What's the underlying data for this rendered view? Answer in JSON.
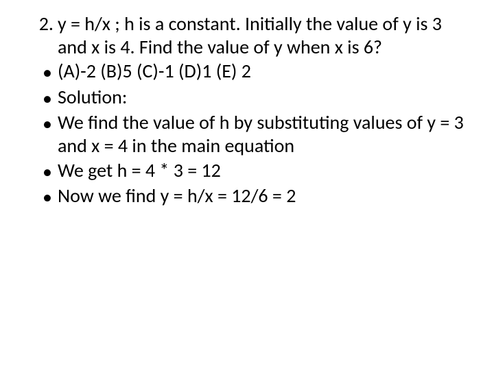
{
  "slide": {
    "text_color": "#000000",
    "background_color": "#ffffff",
    "font_family": "Calibri, Arial, sans-serif",
    "font_size_pt": 28,
    "numbered": {
      "marker": "2.",
      "text": "y = h/x ; h is a constant. Initially the value of y is 3 and x is 4. Find the value of y when x is 6?"
    },
    "bullets": [
      "(A)-2  (B)5  (C)-1  (D)1  (E) 2",
      "Solution:",
      "We find the value of h by substituting values of y = 3 and x = 4 in the main equation",
      "We get h = 4 * 3 = 12",
      "Now we find y = h/x = 12/6 = 2"
    ],
    "bullet_marker": "•"
  }
}
